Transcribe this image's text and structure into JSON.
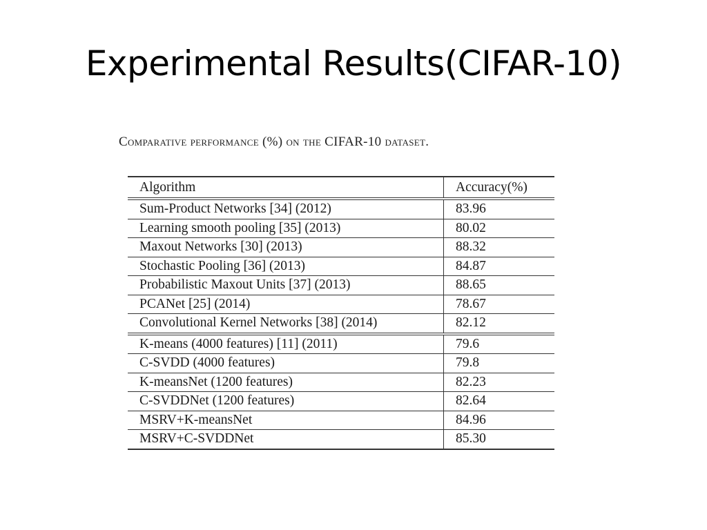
{
  "slide": {
    "title": "Experimental Results(CIFAR-10)"
  },
  "table": {
    "caption": "Comparative performance (%) on the CIFAR-10 dataset.",
    "headers": {
      "algorithm": "Algorithm",
      "accuracy": "Accuracy(%)"
    },
    "rows": [
      {
        "algorithm": "Sum-Product Networks [34] (2012)",
        "accuracy": "83.96"
      },
      {
        "algorithm": "Learning smooth pooling [35] (2013)",
        "accuracy": "80.02"
      },
      {
        "algorithm": "Maxout Networks [30] (2013)",
        "accuracy": "88.32"
      },
      {
        "algorithm": "Stochastic Pooling [36] (2013)",
        "accuracy": "84.87"
      },
      {
        "algorithm": "Probabilistic Maxout Units [37] (2013)",
        "accuracy": "88.65"
      },
      {
        "algorithm": "PCANet [25] (2014)",
        "accuracy": "78.67"
      },
      {
        "algorithm": "Convolutional Kernel Networks [38] (2014)",
        "accuracy": "82.12"
      },
      {
        "algorithm": "K-means (4000 features) [11] (2011)",
        "accuracy": "79.6"
      },
      {
        "algorithm": "C-SVDD (4000 features)",
        "accuracy": "79.8"
      },
      {
        "algorithm": "K-meansNet (1200 features)",
        "accuracy": "82.23"
      },
      {
        "algorithm": "C-SVDDNet (1200 features)",
        "accuracy": "82.64"
      },
      {
        "algorithm": "MSRV+K-meansNet",
        "accuracy": "84.96"
      },
      {
        "algorithm": "MSRV+C-SVDDNet",
        "accuracy": "85.30",
        "bold": true
      }
    ]
  }
}
